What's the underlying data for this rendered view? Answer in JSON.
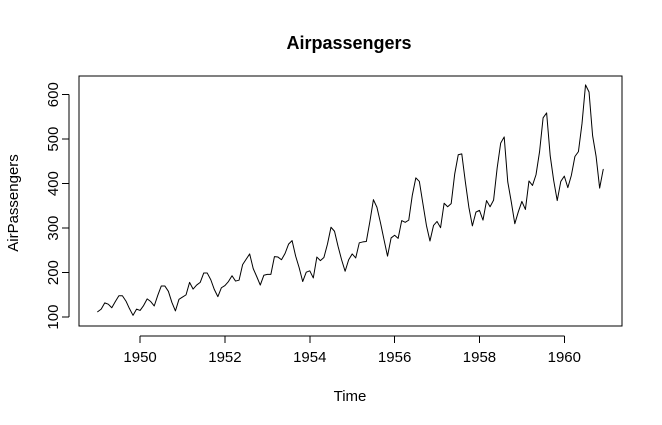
{
  "chart_data": {
    "type": "line",
    "title": "Airpassengers",
    "xlabel": "Time",
    "ylabel": "AirPassengers",
    "xlim": [
      1948.56,
      1961.36
    ],
    "ylim": [
      80,
      642
    ],
    "x_ticks": [
      1950,
      1952,
      1954,
      1956,
      1958,
      1960
    ],
    "y_ticks": [
      100,
      200,
      300,
      400,
      500,
      600
    ],
    "grid": false,
    "legend": "none",
    "line_color": "#000000",
    "x": [
      1949.0,
      1949.083,
      1949.167,
      1949.25,
      1949.333,
      1949.417,
      1949.5,
      1949.583,
      1949.667,
      1949.75,
      1949.833,
      1949.917,
      1950.0,
      1950.083,
      1950.167,
      1950.25,
      1950.333,
      1950.417,
      1950.5,
      1950.583,
      1950.667,
      1950.75,
      1950.833,
      1950.917,
      1951.0,
      1951.083,
      1951.167,
      1951.25,
      1951.333,
      1951.417,
      1951.5,
      1951.583,
      1951.667,
      1951.75,
      1951.833,
      1951.917,
      1952.0,
      1952.083,
      1952.167,
      1952.25,
      1952.333,
      1952.417,
      1952.5,
      1952.583,
      1952.667,
      1952.75,
      1952.833,
      1952.917,
      1953.0,
      1953.083,
      1953.167,
      1953.25,
      1953.333,
      1953.417,
      1953.5,
      1953.583,
      1953.667,
      1953.75,
      1953.833,
      1953.917,
      1954.0,
      1954.083,
      1954.167,
      1954.25,
      1954.333,
      1954.417,
      1954.5,
      1954.583,
      1954.667,
      1954.75,
      1954.833,
      1954.917,
      1955.0,
      1955.083,
      1955.167,
      1955.25,
      1955.333,
      1955.417,
      1955.5,
      1955.583,
      1955.667,
      1955.75,
      1955.833,
      1955.917,
      1956.0,
      1956.083,
      1956.167,
      1956.25,
      1956.333,
      1956.417,
      1956.5,
      1956.583,
      1956.667,
      1956.75,
      1956.833,
      1956.917,
      1957.0,
      1957.083,
      1957.167,
      1957.25,
      1957.333,
      1957.417,
      1957.5,
      1957.583,
      1957.667,
      1957.75,
      1957.833,
      1957.917,
      1958.0,
      1958.083,
      1958.167,
      1958.25,
      1958.333,
      1958.417,
      1958.5,
      1958.583,
      1958.667,
      1958.75,
      1958.833,
      1958.917,
      1959.0,
      1959.083,
      1959.167,
      1959.25,
      1959.333,
      1959.417,
      1959.5,
      1959.583,
      1959.667,
      1959.75,
      1959.833,
      1959.917,
      1960.0,
      1960.083,
      1960.167,
      1960.25,
      1960.333,
      1960.417,
      1960.5,
      1960.583,
      1960.667,
      1960.75,
      1960.833,
      1960.917
    ],
    "y": [
      112,
      118,
      132,
      129,
      121,
      135,
      148,
      148,
      136,
      119,
      104,
      118,
      115,
      126,
      141,
      135,
      125,
      149,
      170,
      170,
      158,
      133,
      114,
      140,
      145,
      150,
      178,
      163,
      172,
      178,
      199,
      199,
      184,
      162,
      146,
      166,
      171,
      180,
      193,
      181,
      183,
      218,
      230,
      242,
      209,
      191,
      172,
      194,
      196,
      196,
      236,
      235,
      229,
      243,
      264,
      272,
      237,
      211,
      180,
      201,
      204,
      188,
      235,
      227,
      234,
      264,
      302,
      293,
      259,
      229,
      203,
      229,
      242,
      233,
      267,
      269,
      270,
      315,
      364,
      347,
      312,
      274,
      237,
      278,
      284,
      277,
      317,
      313,
      318,
      374,
      413,
      405,
      355,
      306,
      271,
      306,
      315,
      301,
      356,
      348,
      355,
      422,
      465,
      467,
      404,
      347,
      305,
      336,
      340,
      318,
      362,
      348,
      363,
      435,
      491,
      505,
      404,
      359,
      310,
      337,
      360,
      342,
      406,
      396,
      420,
      472,
      548,
      559,
      463,
      407,
      362,
      405,
      417,
      391,
      419,
      461,
      472,
      535,
      622,
      606,
      508,
      461,
      390,
      432
    ]
  }
}
